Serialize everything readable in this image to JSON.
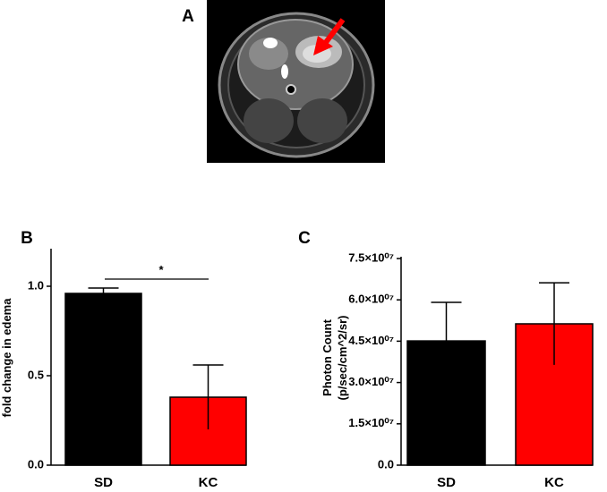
{
  "panels": [
    "A",
    "B",
    "C"
  ],
  "chart_data": [
    {
      "type": "bar",
      "ylabel": "fold change in edema",
      "categories": [
        "SD",
        "KC"
      ],
      "values": [
        0.96,
        0.38
      ],
      "errors": [
        0.03,
        0.18
      ],
      "colors": [
        "#000000",
        "#ff0000"
      ],
      "ylim": [
        0,
        1.2
      ],
      "yticks": [
        {
          "value": 0,
          "label": "0.0"
        },
        {
          "value": 0.5,
          "label": "0.5"
        },
        {
          "value": 1,
          "label": "1.0"
        }
      ],
      "annotation": "*"
    },
    {
      "type": "bar",
      "ylabel_lines": [
        "Photon Count",
        "(p/sec/cm^2/sr)"
      ],
      "categories": [
        "SD",
        "KC"
      ],
      "values": [
        45100000,
        51300000
      ],
      "errors": [
        14000000,
        14900000
      ],
      "colors": [
        "#000000",
        "#ff0000"
      ],
      "ylim": [
        0,
        75000000
      ],
      "yticks": [
        {
          "value": 0,
          "label": "0.0"
        },
        {
          "value": 15000000,
          "label": "1.5×10⁰⁷"
        },
        {
          "value": 30000000,
          "label": "3.0×10⁰⁷"
        },
        {
          "value": 45000000,
          "label": "4.5×10⁰⁷"
        },
        {
          "value": 60000000,
          "label": "6.0×10⁰⁷"
        },
        {
          "value": 75000000,
          "label": "7.5×10⁰⁷"
        }
      ]
    }
  ]
}
